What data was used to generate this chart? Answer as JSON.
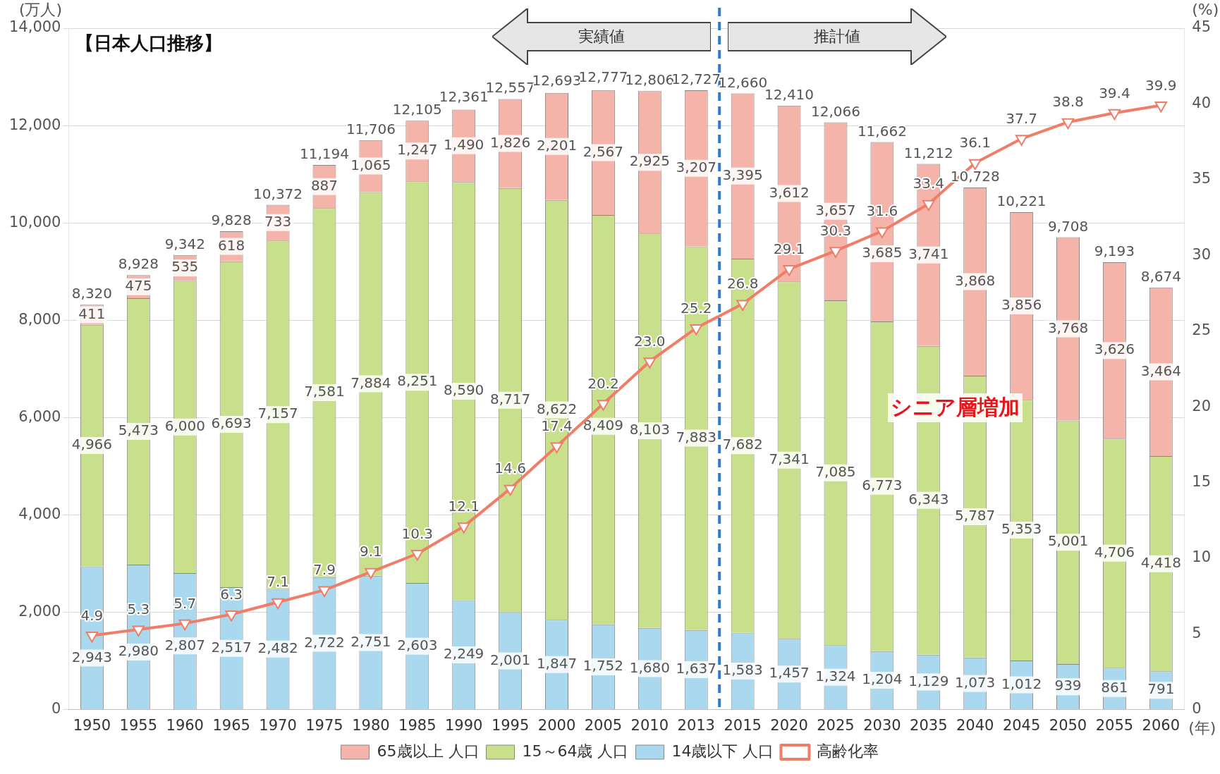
{
  "chart_data": {
    "type": "bar",
    "title": "【日本人口推移】",
    "categories": [
      "1950",
      "1955",
      "1960",
      "1965",
      "1970",
      "1975",
      "1980",
      "1985",
      "1990",
      "1995",
      "2000",
      "2005",
      "2010",
      "2013",
      "2015",
      "2020",
      "2025",
      "2030",
      "2035",
      "2040",
      "2045",
      "2050",
      "2055",
      "2060"
    ],
    "stacked": true,
    "series": [
      {
        "name": "14歳以下 人口",
        "color": "#a9d8ef",
        "values": [
          2943,
          2980,
          2807,
          2517,
          2482,
          2722,
          2751,
          2603,
          2249,
          2001,
          1847,
          1752,
          1680,
          1637,
          1583,
          1457,
          1324,
          1204,
          1129,
          1073,
          1012,
          939,
          861,
          791
        ],
        "value_labels": [
          "2,943",
          "2,980",
          "2,807",
          "2,517",
          "2,482",
          "2,722",
          "2,751",
          "2,603",
          "2,249",
          "2,001",
          "1,847",
          "1,752",
          "1,680",
          "1,637",
          "1,583",
          "1,457",
          "1,324",
          "1,204",
          "1,129",
          "1,073",
          "1,012",
          "939",
          "861",
          "791"
        ]
      },
      {
        "name": "15～64歳 人口",
        "color": "#c8e08c",
        "values": [
          4966,
          5473,
          6000,
          6693,
          7157,
          7581,
          7884,
          8251,
          8590,
          8717,
          8622,
          8409,
          8103,
          7883,
          7682,
          7341,
          7085,
          6773,
          6343,
          5787,
          5353,
          5001,
          4706,
          4418
        ],
        "value_labels": [
          "4,966",
          "5,473",
          "6,000",
          "6,693",
          "7,157",
          "7,581",
          "7,884",
          "8,251",
          "8,590",
          "8,717",
          "8,622",
          "8,409",
          "8,103",
          "7,883",
          "7,682",
          "7,341",
          "7,085",
          "6,773",
          "6,343",
          "5,787",
          "5,353",
          "5,001",
          "4,706",
          "4,418"
        ]
      },
      {
        "name": "65歳以上 人口",
        "color": "#f4b4aa",
        "values": [
          411,
          475,
          535,
          618,
          733,
          887,
          1065,
          1247,
          1490,
          1826,
          2201,
          2567,
          2925,
          3207,
          3395,
          3612,
          3657,
          3685,
          3741,
          3868,
          3856,
          3768,
          3626,
          3464
        ],
        "value_labels": [
          "411",
          "475",
          "535",
          "618",
          "733",
          "887",
          "1,065",
          "1,247",
          "1,490",
          "1,826",
          "2,201",
          "2,567",
          "2,925",
          "3,207",
          "3,395",
          "3,612",
          "3,657",
          "3,685",
          "3,741",
          "3,868",
          "3,856",
          "3,768",
          "3,626",
          "3,464"
        ]
      },
      {
        "name": "高齢化率",
        "type": "line",
        "axis": "y2",
        "color": "#f07d68",
        "values": [
          4.9,
          5.3,
          5.7,
          6.3,
          7.1,
          7.9,
          9.1,
          10.3,
          12.1,
          14.6,
          17.4,
          20.2,
          23.0,
          25.2,
          26.8,
          29.1,
          30.3,
          31.6,
          33.4,
          36.1,
          37.7,
          38.8,
          39.4,
          39.9
        ],
        "value_labels": [
          "4.9",
          "5.3",
          "5.7",
          "6.3",
          "7.1",
          "7.9",
          "9.1",
          "10.3",
          "12.1",
          "14.6",
          "17.4",
          "20.2",
          "23.0",
          "25.2",
          "26.8",
          "29.1",
          "30.3",
          "31.6",
          "33.4",
          "36.1",
          "37.7",
          "38.8",
          "39.4",
          "39.9"
        ]
      }
    ],
    "ylabel": "(万人)",
    "y2label": "(%)",
    "xlabel": "(年)",
    "ylim": [
      0,
      14000
    ],
    "yticks": [
      0,
      {
        "value": 2000,
        "label": "2,000"
      },
      {
        "value": 4000,
        "label": "4,000"
      },
      {
        "value": 6000,
        "label": "6,000"
      },
      {
        "value": 8000,
        "label": "8,000"
      },
      {
        "value": 10000,
        "label": "10,000"
      },
      {
        "value": 12000,
        "label": "12,000"
      },
      {
        "value": 14000,
        "label": "14,000"
      }
    ],
    "y2lim": [
      0,
      45
    ],
    "y2ticks": [
      0,
      5,
      10,
      15,
      20,
      25,
      30,
      35,
      40,
      45
    ],
    "ref_lines": [
      {
        "axis": "x",
        "value": "2013",
        "color": "#2f7bd0",
        "line_style": "dashed"
      }
    ],
    "annotations": [
      "実績値",
      "推計値",
      "シニア層増加",
      {
        "text": "8,320",
        "x": "1950",
        "y": 8320
      },
      {
        "text": "8,928",
        "x": "1955",
        "y": 8928
      },
      {
        "text": "9,342",
        "x": "1960",
        "y": 9342
      },
      {
        "text": "9,828",
        "x": "1965",
        "y": 9828
      },
      {
        "text": "10,372",
        "x": "1970",
        "y": 10372
      },
      {
        "text": "11,194",
        "x": "1975",
        "y": 11194
      },
      {
        "text": "11,706",
        "x": "1980",
        "y": 11706
      },
      {
        "text": "12,105",
        "x": "1985",
        "y": 12105
      },
      {
        "text": "12,361",
        "x": "1990",
        "y": 12361
      },
      {
        "text": "12,557",
        "x": "1995",
        "y": 12557
      },
      {
        "text": "12,693",
        "x": "2000",
        "y": 12693
      },
      {
        "text": "12,777",
        "x": "2005",
        "y": 12777
      },
      "12,806",
      {
        "text": "12,727",
        "x": "2013",
        "y": 12727
      },
      {
        "text": "12,660",
        "x": "2015",
        "y": 12660
      },
      {
        "text": "12,410",
        "x": "2020",
        "y": 12410
      },
      {
        "text": "12,066",
        "x": "2025",
        "y": 12066
      },
      {
        "text": "11,662",
        "x": "2030",
        "y": 11662
      },
      {
        "text": "11,212",
        "x": "2035",
        "y": 11212
      },
      {
        "text": "10,728",
        "x": "2040",
        "y": 10728
      },
      {
        "text": "10,221",
        "x": "2045",
        "y": 10221
      },
      {
        "text": "9,708",
        "x": "2050",
        "y": 9708
      },
      {
        "text": "9,193",
        "x": "2055",
        "y": 9193
      },
      {
        "text": "8,674",
        "x": "2060",
        "y": 8674
      }
    ],
    "grid": "y",
    "legend": "bottom",
    "marker": "triangle"
  }
}
